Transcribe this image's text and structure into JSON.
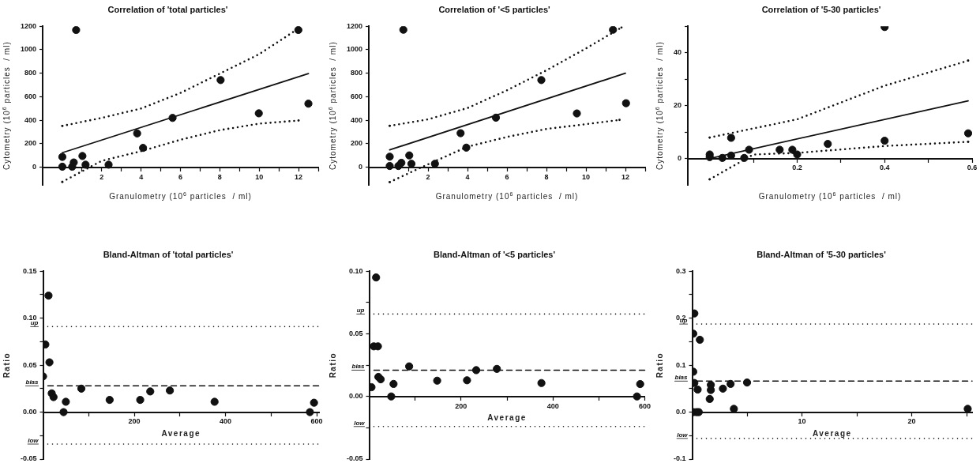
{
  "chart_data": [
    {
      "type": "scatter",
      "title": "Correlation of 'total particles'",
      "xlabel": "Granulometry (10$^{6}$ particles  / ml)",
      "ylabel": "Cytometry (10$^{6}$ particles  / ml)",
      "xlim": [
        -1,
        13
      ],
      "xticks": [
        {
          "value": 1,
          "label": null
        },
        2,
        {
          "value": 3,
          "label": null
        },
        4,
        {
          "value": 5,
          "label": null
        },
        6,
        {
          "value": 7,
          "label": null
        },
        8,
        {
          "value": 9,
          "label": null
        },
        10,
        {
          "value": 11,
          "label": null
        },
        12,
        {
          "value": 13,
          "label": null
        }
      ],
      "ylim": [
        -150,
        1200
      ],
      "yticks": [
        0,
        200,
        400,
        600,
        800,
        1000,
        1200
      ],
      "series": [
        {
          "type": "scatter",
          "marker": "circle",
          "color": "#111111",
          "x": [
            0,
            0,
            0.5,
            0.58,
            0.7,
            1.02,
            1.18,
            2.35,
            3.8,
            4.1,
            5.6,
            8.04,
            9.98,
            11.99,
            12.5
          ],
          "values": [
            88,
            5,
            5,
            41,
            1168,
            96,
            22,
            22,
            288,
            165,
            420,
            742,
            459,
            1168,
            541
          ]
        },
        {
          "type": "line",
          "marker": "none",
          "color": "#111111",
          "line_style": "solid",
          "x": [
            0,
            12.5
          ],
          "values": [
            124,
            797
          ]
        },
        {
          "type": "line",
          "marker": "none",
          "color": "#111111",
          "line_style": "dotted",
          "x": [
            0,
            2,
            4,
            6,
            8,
            10,
            12
          ],
          "values": [
            352,
            420,
            500,
            632,
            797,
            962,
            1181
          ]
        },
        {
          "type": "line",
          "marker": "none",
          "color": "#111111",
          "line_style": "dotted",
          "x": [
            0,
            2,
            4,
            6,
            8,
            10,
            12
          ],
          "values": [
            -124,
            55,
            137,
            234,
            316,
            371,
            398
          ]
        }
      ]
    },
    {
      "type": "scatter",
      "title": "Correlation of '<5 particles'",
      "xlabel": "Granulometry (10$^{6}$ particles  / ml)",
      "ylabel": "Cytometry (10$^{6}$ particles  / ml)",
      "xlim": [
        -1,
        13
      ],
      "xticks": [
        {
          "value": 1,
          "label": null
        },
        2,
        {
          "value": 3,
          "label": null
        },
        4,
        {
          "value": 5,
          "label": null
        },
        6,
        {
          "value": 7,
          "label": null
        },
        8,
        {
          "value": 9,
          "label": null
        },
        10,
        {
          "value": 11,
          "label": null
        },
        12,
        {
          "value": 13,
          "label": null
        }
      ],
      "ylim": [
        -150,
        1200
      ],
      "yticks": [
        0,
        200,
        400,
        600,
        800,
        1000,
        1200
      ],
      "series": [
        {
          "type": "scatter",
          "marker": "circle",
          "color": "#111111",
          "x": [
            0.06,
            0.06,
            0.5,
            0.65,
            0.75,
            1.05,
            1.16,
            2.35,
            3.65,
            3.94,
            5.44,
            7.74,
            9.54,
            11.37,
            12.03
          ],
          "values": [
            90,
            11,
            11,
            38,
            1170,
            101,
            30,
            30,
            290,
            167,
            422,
            742,
            458,
            1170,
            545
          ]
        },
        {
          "type": "line",
          "marker": "none",
          "color": "#111111",
          "line_style": "solid",
          "x": [
            0.06,
            12
          ],
          "values": [
            148,
            800
          ]
        },
        {
          "type": "line",
          "marker": "none",
          "color": "#111111",
          "line_style": "dotted",
          "x": [
            0.06,
            2,
            4,
            6,
            8,
            10,
            11.8
          ],
          "values": [
            353,
            408,
            504,
            655,
            825,
            1011,
            1189
          ]
        },
        {
          "type": "line",
          "marker": "none",
          "color": "#111111",
          "line_style": "dotted",
          "x": [
            0.06,
            2,
            4,
            6,
            8,
            10,
            11.7
          ],
          "values": [
            -126,
            25,
            175,
            258,
            326,
            367,
            403
          ]
        }
      ]
    },
    {
      "type": "scatter",
      "title": "Correlation of '5-30 particles'",
      "xlabel": "Granulometry (10$^{6}$ particles  / ml)",
      "ylabel": "Cytometry (10$^{6}$ particles  / ml)",
      "xlim": [
        -0.05,
        0.6
      ],
      "xticks": [
        {
          "value": 0.1,
          "label": null
        },
        0.2,
        {
          "value": 0.3,
          "label": null
        },
        0.4,
        {
          "value": 0.5,
          "label": null
        },
        0.6
      ],
      "ylim": [
        -10,
        50
      ],
      "yticks": [
        0,
        {
          "value": 10,
          "label": null
        },
        20,
        {
          "value": 30,
          "label": null
        },
        40,
        {
          "value": 50,
          "label": null
        }
      ],
      "series": [
        {
          "type": "scatter",
          "marker": "circle",
          "color": "#111111",
          "x": [
            0,
            0,
            0.029,
            0.049,
            0.049,
            0.079,
            0.09,
            0.16,
            0.189,
            0.2,
            0.27,
            0.4,
            0.4,
            0.591
          ],
          "values": [
            1.5,
            0.5,
            0.2,
            7.8,
            1.1,
            0.2,
            3.3,
            3.3,
            3.3,
            1.5,
            5.5,
            6.7,
            49.7,
            9.5
          ]
        },
        {
          "type": "line",
          "marker": "none",
          "color": "#111111",
          "line_style": "solid",
          "x": [
            0,
            0.591
          ],
          "values": [
            0,
            21.8
          ]
        },
        {
          "type": "line",
          "marker": "none",
          "color": "#111111",
          "line_style": "dotted",
          "x": [
            0,
            0.2,
            0.4,
            0.591
          ],
          "values": [
            7.9,
            14.8,
            27.5,
            37
          ]
        },
        {
          "type": "line",
          "marker": "none",
          "color": "#111111",
          "line_style": "dotted",
          "x": [
            0,
            0.1,
            0.2,
            0.4,
            0.591
          ],
          "values": [
            -7.9,
            1.5,
            2.1,
            4.7,
            6.3
          ]
        }
      ]
    },
    {
      "type": "scatter",
      "title": "Bland-Altman of 'total particles'",
      "xlabel": "Average",
      "ylabel": "Ratio",
      "marker": "circle",
      "xlim": [
        0,
        605
      ],
      "xticks": [
        {
          "value": 100,
          "label": null
        },
        200,
        {
          "value": 300,
          "label": null
        },
        400,
        {
          "value": 500,
          "label": null
        },
        600
      ],
      "ylim": [
        -0.05,
        0.15
      ],
      "yticks": [
        -0.05,
        {
          "value": -0.025,
          "label": null
        },
        {
          "value": 0,
          "label": "0.00"
        },
        {
          "value": 0.025,
          "label": null
        },
        0.05,
        {
          "value": 0.075,
          "label": null
        },
        {
          "value": 0.1,
          "label": "0.10"
        },
        {
          "value": 0.125,
          "label": null
        },
        0.15
      ],
      "series": [
        {
          "type": "scatter",
          "color": "#111111",
          "x": [
            0,
            5,
            12,
            14,
            19,
            23,
            45,
            50,
            84,
            146,
            213,
            235,
            278,
            376,
            585,
            594
          ],
          "values": [
            0.038,
            0.072,
            0.124,
            0.053,
            0.02,
            0.016,
            0,
            0.011,
            0.025,
            0.013,
            0.013,
            0.022,
            0.023,
            0.011,
            0,
            0.01
          ]
        }
      ],
      "ref_lines": [
        {
          "axis": "y",
          "value": 0.091,
          "label": "up",
          "line_style": "dotted"
        },
        {
          "axis": "y",
          "value": 0.028,
          "label": "bias",
          "line_style": "dashed"
        },
        {
          "axis": "y",
          "value": -0.034,
          "label": "low",
          "line_style": "dotted"
        }
      ]
    },
    {
      "type": "scatter",
      "title": "Bland-Altman of '<5 particles'",
      "xlabel": "Average",
      "ylabel": "Ratio",
      "marker": "circle",
      "xlim": [
        0,
        600
      ],
      "xticks": [
        {
          "value": 100,
          "label": null
        },
        200,
        {
          "value": 300,
          "label": null
        },
        400,
        {
          "value": 500,
          "label": null
        },
        600
      ],
      "ylim": [
        -0.05,
        0.1
      ],
      "yticks": [
        -0.05,
        {
          "value": -0.025,
          "label": null
        },
        {
          "value": 0,
          "label": "0.00"
        },
        {
          "value": 0.025,
          "label": null
        },
        0.05,
        {
          "value": 0.075,
          "label": null
        },
        {
          "value": 0.1,
          "label": "0.10"
        }
      ],
      "series": [
        {
          "type": "scatter",
          "color": "#111111",
          "x": [
            5,
            10,
            15,
            19,
            20,
            25,
            48,
            53,
            87,
            148,
            213,
            233,
            278,
            375,
            583,
            590
          ],
          "values": [
            0.0074,
            0.04,
            0.095,
            0.04,
            0.0156,
            0.0137,
            0,
            0.01,
            0.024,
            0.0126,
            0.0129,
            0.021,
            0.022,
            0.0107,
            0,
            0.0099
          ]
        }
      ],
      "ref_lines": [
        {
          "axis": "y",
          "value": 0.0658,
          "label": "up",
          "line_style": "dotted"
        },
        {
          "axis": "y",
          "value": 0.021,
          "label": "bias",
          "line_style": "dashed"
        },
        {
          "axis": "y",
          "value": -0.024,
          "label": "low",
          "line_style": "dotted"
        }
      ]
    },
    {
      "type": "scatter",
      "title": "Bland-Altman of '5-30 particles'",
      "xlabel": "Average",
      "ylabel": "Ratio",
      "marker": "circle",
      "xlim": [
        0,
        25.5
      ],
      "xticks": [
        {
          "value": 5,
          "label": null
        },
        10,
        {
          "value": 15,
          "label": null
        },
        20,
        {
          "value": 25,
          "label": null
        }
      ],
      "ylim": [
        -0.1,
        0.3
      ],
      "yticks": [
        -0.1,
        {
          "value": -0.05,
          "label": null
        },
        {
          "value": 0,
          "label": "0.0"
        },
        {
          "value": 0.05,
          "label": null
        },
        0.1,
        {
          "value": 0.15,
          "label": null
        },
        0.2,
        {
          "value": 0.25,
          "label": null
        },
        0.3
      ],
      "series": [
        {
          "type": "scatter",
          "color": "#111111",
          "x": [
            0.1,
            0.2,
            0.1,
            0.2,
            0.1,
            0.4,
            0.6,
            0.5,
            0.7,
            1.6,
            1.7,
            1.7,
            2.8,
            3.5,
            3.8,
            5,
            25.1
          ],
          "values": [
            0.167,
            0.21,
            0.086,
            0.062,
            0,
            0,
            0,
            0.048,
            0.154,
            0.028,
            0.047,
            0.058,
            0.05,
            0.06,
            0.007,
            0.063,
            0.007
          ]
        }
      ],
      "ref_lines": [
        {
          "axis": "y",
          "value": 0.1875,
          "label": "up",
          "line_style": "dotted"
        },
        {
          "axis": "y",
          "value": 0.066,
          "label": "bias",
          "line_style": "dashed"
        },
        {
          "axis": "y",
          "value": -0.056,
          "label": "low",
          "line_style": "dotted"
        }
      ]
    }
  ]
}
